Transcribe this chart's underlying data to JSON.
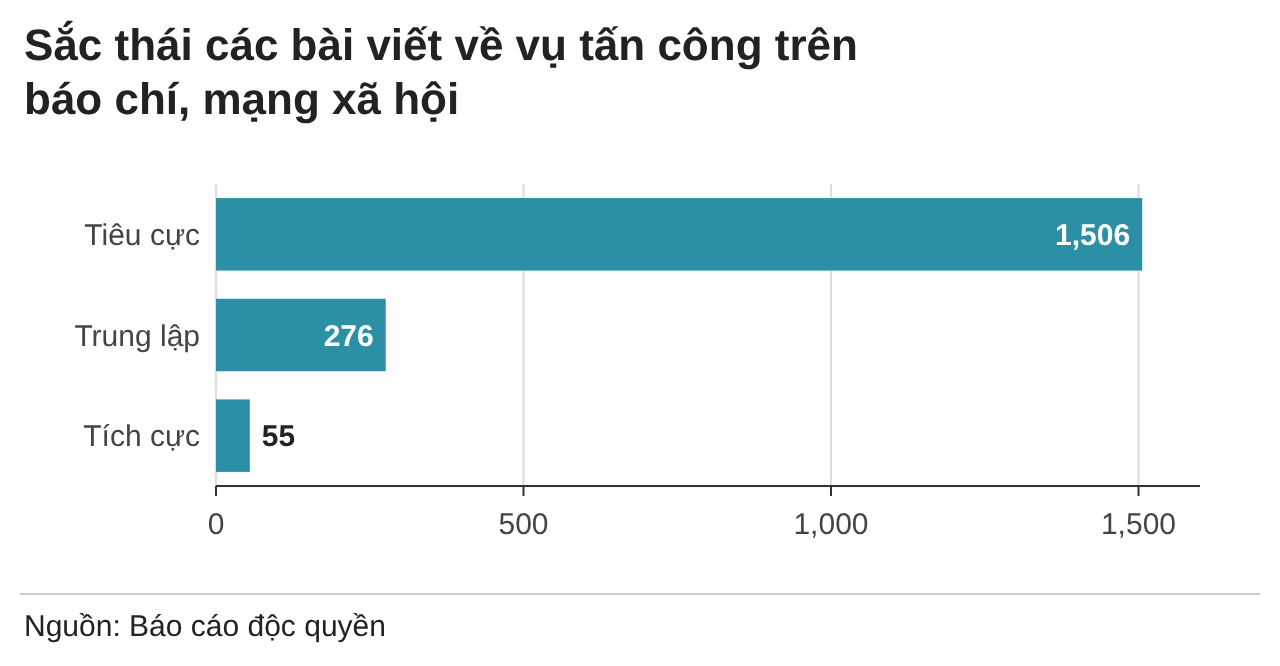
{
  "chart_data": {
    "type": "bar",
    "orientation": "horizontal",
    "title": "Sắc thái các bài viết về vụ tấn công trên báo chí, mạng xã hội",
    "categories": [
      "Tiêu cực",
      "Trung lập",
      "Tích cực"
    ],
    "values": [
      1506,
      276,
      55
    ],
    "value_labels": [
      "1,506",
      "276",
      "55"
    ],
    "color": "#2b8fa6",
    "xlim": [
      0,
      1600
    ],
    "xticks": [
      0,
      500,
      {
        "value": 1000,
        "label": "1,000"
      },
      {
        "value": 1500,
        "label": "1,500"
      }
    ],
    "grid": "x",
    "annotations": [
      "Nguồn: Báo cáo độc quyền"
    ]
  }
}
